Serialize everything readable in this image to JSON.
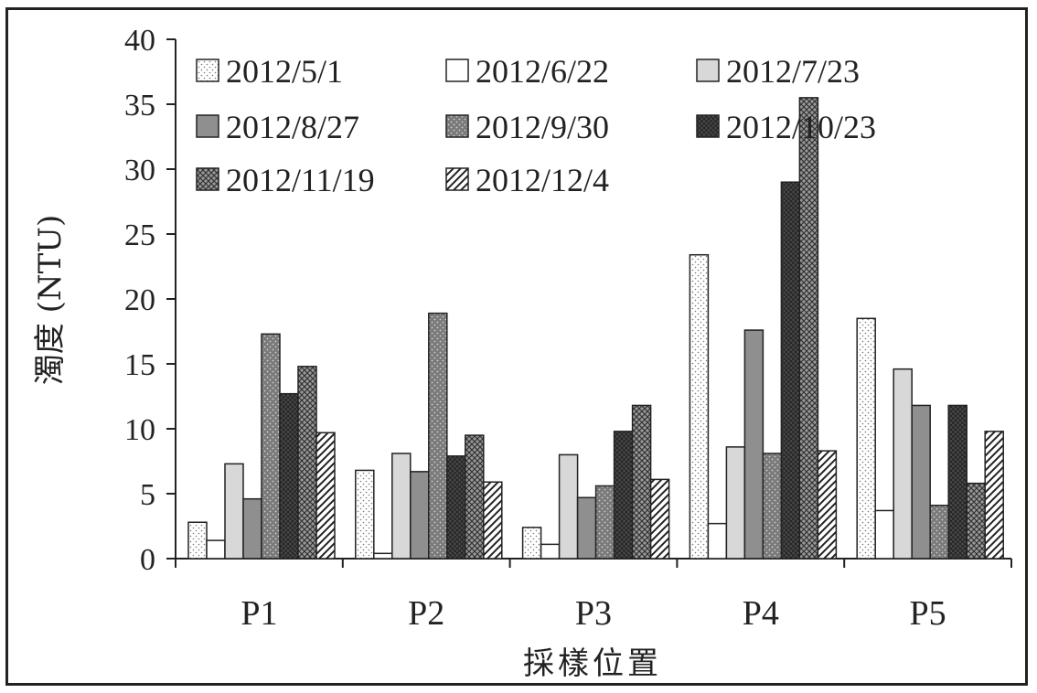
{
  "chart_data": {
    "type": "bar",
    "title": "",
    "xlabel": "採樣位置",
    "ylabel": "濁度 (NTU)",
    "ylim": [
      0,
      40
    ],
    "yticks": [
      "0",
      "5",
      "10",
      "15",
      "20",
      "25",
      "30",
      "35",
      "40"
    ],
    "categories": [
      "P1",
      "P2",
      "P3",
      "P4",
      "P5"
    ],
    "legend_position": "top",
    "grid": false,
    "series": [
      {
        "name": "2012/5/1",
        "pattern": "sparse-dots",
        "values": [
          2.8,
          6.8,
          2.4,
          23.4,
          18.5
        ]
      },
      {
        "name": "2012/6/22",
        "pattern": "white",
        "values": [
          1.4,
          0.4,
          1.1,
          2.7,
          3.7
        ]
      },
      {
        "name": "2012/7/23",
        "pattern": "light-gray",
        "values": [
          7.3,
          8.1,
          8.0,
          8.6,
          14.6
        ]
      },
      {
        "name": "2012/8/27",
        "pattern": "mid-gray",
        "values": [
          4.6,
          6.7,
          4.7,
          17.6,
          11.8
        ]
      },
      {
        "name": "2012/9/30",
        "pattern": "dotted-gray",
        "values": [
          17.3,
          18.9,
          5.6,
          8.1,
          4.1
        ]
      },
      {
        "name": "2012/10/23",
        "pattern": "dark-crosshatch",
        "values": [
          12.7,
          7.9,
          9.8,
          29.0,
          11.8
        ]
      },
      {
        "name": "2012/11/19",
        "pattern": "crosshatch",
        "values": [
          14.8,
          9.5,
          11.8,
          35.5,
          5.8
        ]
      },
      {
        "name": "2012/12/4",
        "pattern": "diagonal",
        "values": [
          9.7,
          5.9,
          6.1,
          8.3,
          9.8
        ]
      }
    ]
  }
}
